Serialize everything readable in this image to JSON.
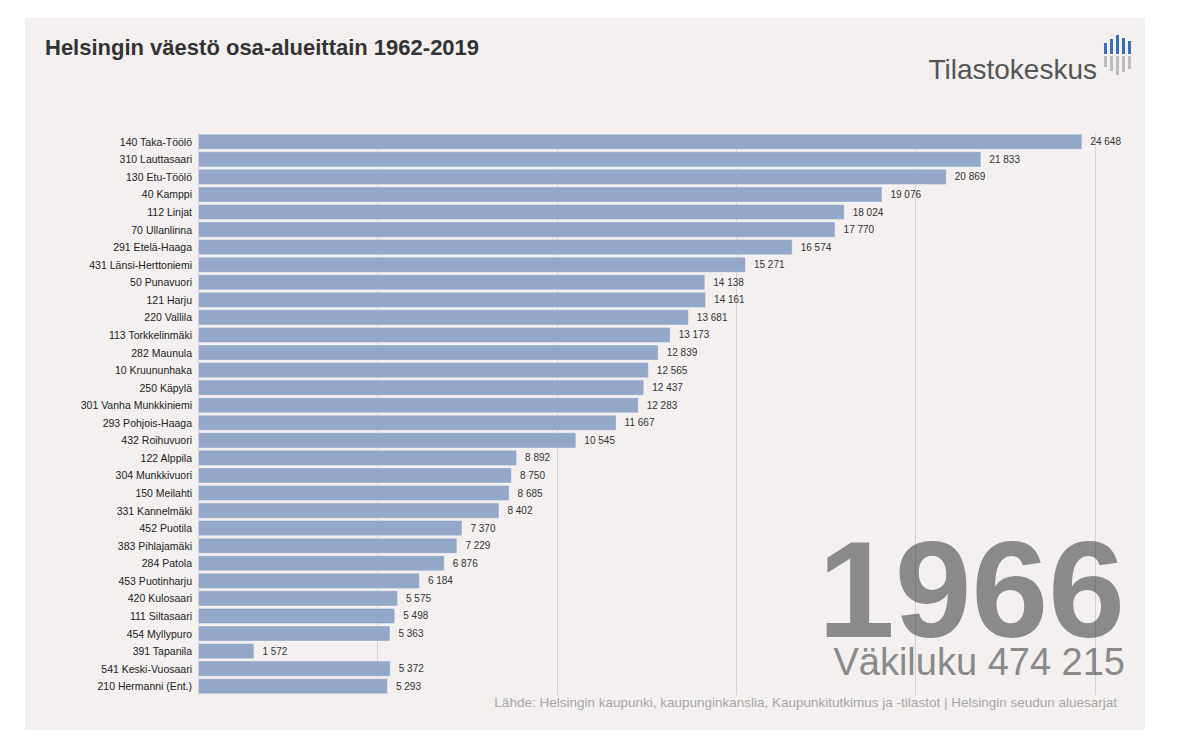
{
  "chart_data": {
    "type": "bar",
    "orientation": "horizontal",
    "title": "Helsingin väestö osa-alueittain 1962-2019",
    "categories": [
      "140 Taka-Töölö",
      "310 Lauttasaari",
      "130 Etu-Töölö",
      "40 Kamppi",
      "112 Linjat",
      "70 Ullanlinna",
      "291 Etelä-Haaga",
      "431 Länsi-Herttoniemi",
      "50 Punavuori",
      "121 Harju",
      "220 Vallila",
      "113 Torkkelinmäki",
      "282 Maunula",
      "10 Kruununhaka",
      "250 Käpylä",
      "301 Vanha Munkkiniemi",
      "293 Pohjois-Haaga",
      "432 Roihuvuori",
      "122 Alppila",
      "304 Munkkivuori",
      "150 Meilahti",
      "331 Kannelmäki",
      "452 Puotila",
      "383 Pihlajamäki",
      "284 Patola",
      "453 Puotinharju",
      "420 Kulosaari",
      "111 Siltasaari",
      "454 Myllypuro",
      "391 Tapanila",
      "541 Keski-Vuosaari",
      "210 Hermanni (Ent.)"
    ],
    "values": [
      24648,
      21833,
      20869,
      19076,
      18024,
      17770,
      16574,
      15271,
      14138,
      14161,
      13681,
      13173,
      12839,
      12565,
      12437,
      12283,
      11667,
      10545,
      8892,
      8750,
      8685,
      8402,
      7370,
      7229,
      6876,
      6184,
      5575,
      5498,
      5363,
      1572,
      5372,
      5293
    ],
    "value_labels": [
      "24 648",
      "21 833",
      "20 869",
      "19 076",
      "18 024",
      "17 770",
      "16 574",
      "15 271",
      "14 138",
      "14 161",
      "13 681",
      "13 173",
      "12 839",
      "12 565",
      "12 437",
      "12 283",
      "11 667",
      "10 545",
      "8 892",
      "8 750",
      "8 685",
      "8 402",
      "7 370",
      "7 229",
      "6 876",
      "6 184",
      "5 575",
      "5 498",
      "5 363",
      "1 572",
      "5 372",
      "5 293"
    ],
    "color": "#93a7c8",
    "xlim": [
      0,
      25000
    ],
    "xticks": [
      0,
      5000,
      10000,
      15000,
      20000,
      25000
    ],
    "grid": true,
    "tick_labels": "y",
    "data_labels": true,
    "annotations": [
      "1966",
      "Väkiluku 474 215",
      "Lähde: Helsingin kaupunki, kaupunginkanslia, Kaupunkitutkimus ja -tilastot | Helsingin seudun aluesarjat",
      "Tilastokeskus"
    ]
  }
}
